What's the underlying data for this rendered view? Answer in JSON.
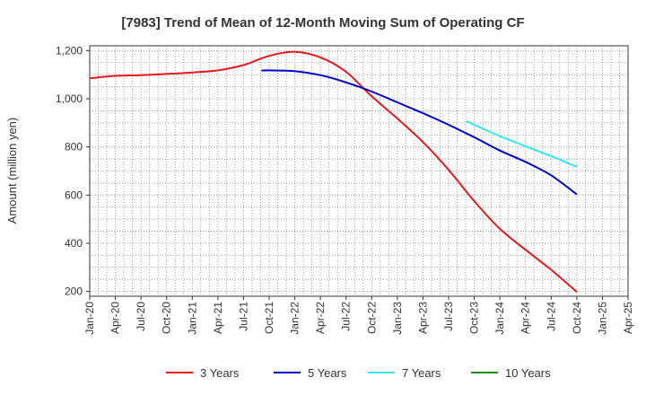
{
  "chart_data": {
    "type": "line",
    "title": "[7983]  Trend of Mean of 12-Month Moving Sum of Operating CF",
    "xlabel": "",
    "ylabel": "Amount (million yen)",
    "ylim": [
      180,
      1220
    ],
    "yticks": [
      200,
      400,
      600,
      800,
      1000,
      1200
    ],
    "ytick_labels": [
      "200",
      "400",
      "600",
      "800",
      "1,000",
      "1,200"
    ],
    "x_categories": [
      "Jan-20",
      "Apr-20",
      "Jul-20",
      "Oct-20",
      "Jan-21",
      "Apr-21",
      "Jul-21",
      "Oct-21",
      "Jan-22",
      "Apr-22",
      "Jul-22",
      "Oct-22",
      "Jan-23",
      "Apr-23",
      "Jul-23",
      "Oct-23",
      "Jan-24",
      "Apr-24",
      "Jul-24",
      "Oct-24",
      "Jan-25",
      "Apr-25"
    ],
    "grid": true,
    "legend_position": "bottom",
    "series": [
      {
        "name": "3 Years",
        "color": "#e41a1c",
        "x": [
          0,
          1,
          2,
          3,
          4,
          5,
          6,
          7,
          8,
          9,
          10,
          11,
          12,
          13,
          14,
          15,
          16,
          17,
          18,
          19
        ],
        "values": [
          1085,
          1095,
          1098,
          1103,
          1109,
          1118,
          1140,
          1178,
          1195,
          1172,
          1112,
          1010,
          918,
          820,
          705,
          575,
          460,
          373,
          290,
          198
        ]
      },
      {
        "name": "5 Years",
        "color": "#0000cc",
        "x": [
          6.7,
          7,
          8,
          9,
          10,
          11,
          12,
          13,
          14,
          15,
          16,
          17,
          18,
          19
        ],
        "values": [
          1117,
          1118,
          1115,
          1098,
          1068,
          1030,
          985,
          940,
          892,
          840,
          785,
          738,
          682,
          603
        ]
      },
      {
        "name": "7 Years",
        "color": "#33e6f2",
        "x": [
          14.7,
          15,
          16,
          17,
          18,
          19
        ],
        "values": [
          907,
          892,
          845,
          803,
          762,
          718
        ]
      },
      {
        "name": "10 Years",
        "color": "#228b22",
        "x": [],
        "values": []
      }
    ]
  }
}
